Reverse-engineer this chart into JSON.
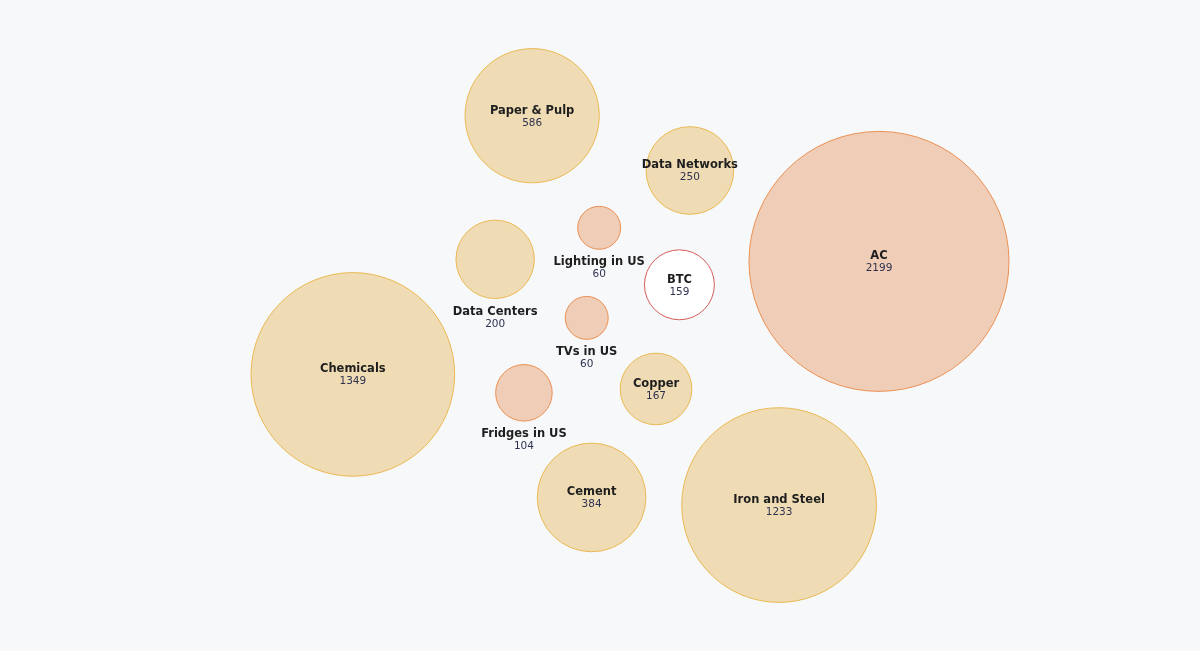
{
  "chart_data": {
    "type": "other",
    "categories": [
      "Data Networks",
      "AC",
      "BTC",
      "Iron and Steel",
      "Copper",
      "Cement",
      "Chemicals",
      "Fridges in US",
      "Data Centers",
      "Lighting in US",
      "Paper & Pulp",
      "TVs in US"
    ],
    "values": [
      250,
      2199,
      159,
      1233,
      167,
      384,
      1349,
      104,
      200,
      60,
      586,
      60
    ],
    "colors": [
      "#efdcb5",
      "#efcdb6",
      "#ffffff",
      "#efdcb5",
      "#efdcb5",
      "#efdcb5",
      "#efdcb5",
      "#efcdb6",
      "#efdcb5",
      "#efcdb6",
      "#efdcb5",
      "#efcdb6"
    ],
    "data_labels": true
  }
}
